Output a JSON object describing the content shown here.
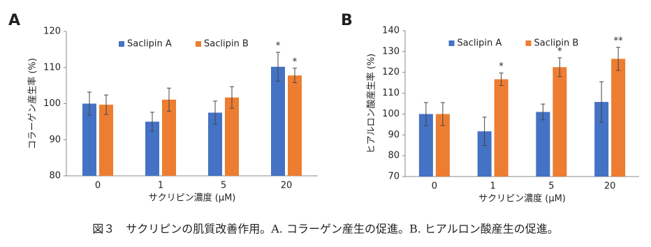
{
  "chart_data": [
    {
      "type": "bar",
      "panel": "A",
      "ylabel": "コラーゲン産生率 (%)",
      "xlabel": "サクリピン濃度 (μM)",
      "categories": [
        "0",
        "1",
        "5",
        "20"
      ],
      "ylim": [
        80,
        120
      ],
      "yticks": [
        80,
        90,
        100,
        110,
        120
      ],
      "legend": "top",
      "series": [
        {
          "name": "Saclipin A",
          "color": "#4472c4",
          "values": [
            100,
            95,
            97.5,
            110.2
          ],
          "errors": [
            3.2,
            2.6,
            3.2,
            4
          ],
          "labels": [
            null,
            null,
            null,
            "*"
          ]
        },
        {
          "name": "Saclipin B",
          "color": "#ed7d31",
          "values": [
            99.7,
            101.1,
            101.7,
            107.8
          ],
          "errors": [
            2.7,
            3.2,
            3,
            2
          ],
          "labels": [
            null,
            null,
            null,
            "*"
          ]
        }
      ]
    },
    {
      "type": "bar",
      "panel": "B",
      "ylabel": "ヒアルロン酸産生率 (%)",
      "xlabel": "サクリピン濃度 (μM)",
      "categories": [
        "0",
        "1",
        "5",
        "20"
      ],
      "ylim": [
        70,
        140
      ],
      "yticks": [
        70,
        80,
        90,
        100,
        110,
        120,
        130,
        140
      ],
      "legend": "top",
      "series": [
        {
          "name": "Saclipin A",
          "color": "#4472c4",
          "values": [
            100,
            91.7,
            101,
            105.8
          ],
          "errors": [
            5.5,
            6.8,
            3.8,
            9.7
          ],
          "labels": [
            null,
            null,
            null,
            null
          ]
        },
        {
          "name": "Saclipin B",
          "color": "#ed7d31",
          "values": [
            100,
            116.7,
            122.5,
            126.5
          ],
          "errors": [
            5.5,
            3,
            4.5,
            5.5
          ],
          "labels": [
            null,
            "*",
            "*",
            "**"
          ]
        }
      ]
    }
  ],
  "caption": "図３　サクリピンの肌質改善作用。A. コラーゲン産生の促進。B. ヒアルロン酸産生の促進。"
}
